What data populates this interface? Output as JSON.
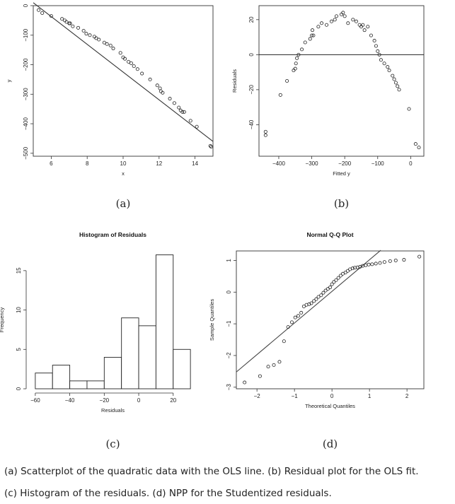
{
  "chart_data": [
    {
      "type": "scatter",
      "panel_label": "(a)",
      "title": "",
      "xlabel": "x",
      "ylabel": "y",
      "xlim": [
        5,
        15
      ],
      "ylim": [
        -510,
        0
      ],
      "xticks": [
        6,
        8,
        10,
        12,
        14
      ],
      "yticks": [
        0,
        -100,
        -200,
        -300,
        -400,
        -500
      ],
      "points": {
        "x": [
          5.3,
          5.5,
          6.0,
          6.6,
          6.75,
          6.85,
          7.0,
          7.05,
          7.2,
          7.5,
          7.8,
          7.95,
          8.15,
          8.4,
          8.5,
          8.65,
          8.95,
          9.1,
          9.3,
          9.45,
          9.85,
          10.0,
          10.1,
          10.3,
          10.45,
          10.6,
          10.8,
          11.05,
          11.5,
          11.9,
          12.05,
          12.1,
          12.2,
          12.6,
          12.85,
          13.1,
          13.2,
          13.3,
          13.4,
          13.75,
          14.1,
          14.85,
          14.9
        ],
        "y": [
          -15,
          -25,
          -35,
          -45,
          -50,
          -55,
          -60,
          -60,
          -70,
          -75,
          -85,
          -95,
          -100,
          -105,
          -110,
          -115,
          -125,
          -130,
          -135,
          -145,
          -160,
          -175,
          -180,
          -190,
          -195,
          -205,
          -215,
          -230,
          -250,
          -270,
          -280,
          -290,
          -295,
          -315,
          -330,
          -345,
          -355,
          -360,
          -360,
          -390,
          -410,
          -475,
          -478
        ]
      },
      "ols_line": {
        "x": [
          5,
          15
        ],
        "y": [
          10,
          -460
        ]
      }
    },
    {
      "type": "scatter",
      "panel_label": "(b)",
      "title": "",
      "xlabel": "Fitted y",
      "ylabel": "Residuals",
      "xlim": [
        -460,
        40
      ],
      "ylim": [
        -58,
        28
      ],
      "xticks": [
        -400,
        -300,
        -200,
        -100,
        0
      ],
      "yticks": [
        20,
        0,
        -20,
        -40
      ],
      "reference_line_y": 0,
      "points": {
        "x": [
          -440,
          -440,
          -395,
          -375,
          -355,
          -350,
          -348,
          -345,
          -340,
          -330,
          -320,
          -305,
          -300,
          -298,
          -295,
          -280,
          -270,
          -255,
          -240,
          -230,
          -225,
          -210,
          -205,
          -200,
          -190,
          -175,
          -165,
          -155,
          -150,
          -145,
          -140,
          -130,
          -120,
          -110,
          -105,
          -100,
          -95,
          -90,
          -80,
          -70,
          -65,
          -55,
          -50,
          -45,
          -40,
          -35,
          -5,
          15,
          25
        ],
        "y": [
          -44,
          -46,
          -23,
          -15,
          -9,
          -8,
          -5,
          -2,
          0,
          3,
          7,
          9,
          11,
          14,
          11,
          16,
          18,
          17,
          19,
          20,
          22,
          23,
          24,
          22,
          18,
          20,
          19,
          17,
          16,
          17,
          14,
          16,
          11,
          8,
          5,
          2,
          0,
          -3,
          -5,
          -7,
          -9,
          -12,
          -14,
          -16,
          -18,
          -20,
          -31,
          -51,
          -53
        ]
      }
    },
    {
      "type": "bar",
      "panel_label": "(c)",
      "title": "Histogram of Residuals",
      "xlabel": "Residuals",
      "ylabel": "Frequency",
      "xlim": [
        -62,
        32
      ],
      "ylim": [
        0,
        17.5
      ],
      "xticks": [
        -60,
        -40,
        -20,
        0,
        20
      ],
      "yticks": [
        0,
        5,
        10,
        15
      ],
      "bin_edges": [
        -60,
        -50,
        -40,
        -30,
        -20,
        -10,
        0,
        10,
        20,
        30
      ],
      "values": [
        2,
        3,
        1,
        1,
        4,
        9,
        8,
        17,
        5
      ]
    },
    {
      "type": "scatter",
      "panel_label": "(d)",
      "title": "Normal Q-Q Plot",
      "xlabel": "Theoretical Quantiles",
      "ylabel": "Sample Quantiles",
      "xlim": [
        -2.55,
        2.45
      ],
      "ylim": [
        -3.05,
        1.3
      ],
      "xticks": [
        -2,
        -1,
        0,
        1,
        2
      ],
      "yticks": [
        1,
        0,
        -1,
        -2,
        -3
      ],
      "reference_line": {
        "x": [
          -2.55,
          1.3
        ],
        "y": [
          -2.52,
          1.32
        ]
      },
      "points": {
        "x": [
          -2.33,
          -1.92,
          -1.7,
          -1.55,
          -1.4,
          -1.28,
          -1.17,
          -1.07,
          -0.98,
          -0.9,
          -0.82,
          -0.75,
          -0.68,
          -0.61,
          -0.55,
          -0.48,
          -0.42,
          -0.36,
          -0.29,
          -0.23,
          -0.17,
          -0.11,
          -0.05,
          0.0,
          0.05,
          0.11,
          0.17,
          0.23,
          0.29,
          0.36,
          0.42,
          0.48,
          0.55,
          0.61,
          0.68,
          0.75,
          0.82,
          0.9,
          0.98,
          1.07,
          1.17,
          1.28,
          1.4,
          1.55,
          1.7,
          1.92,
          2.33
        ],
        "y": [
          -2.85,
          -2.65,
          -2.35,
          -2.3,
          -2.2,
          -1.55,
          -1.1,
          -0.95,
          -0.8,
          -0.75,
          -0.65,
          -0.45,
          -0.4,
          -0.38,
          -0.35,
          -0.28,
          -0.22,
          -0.15,
          -0.1,
          -0.02,
          0.05,
          0.1,
          0.15,
          0.25,
          0.32,
          0.38,
          0.45,
          0.52,
          0.58,
          0.62,
          0.67,
          0.72,
          0.75,
          0.77,
          0.78,
          0.8,
          0.83,
          0.85,
          0.87,
          0.88,
          0.9,
          0.92,
          0.95,
          0.98,
          1.0,
          1.02,
          1.12
        ]
      }
    }
  ],
  "captions": {
    "line1": "(a) Scatterplot of the quadratic data with the OLS line. (b) Residual plot for the OLS fit.",
    "line2": "(c) Histogram of the residuals. (d) NPP for the Studentized residuals."
  }
}
